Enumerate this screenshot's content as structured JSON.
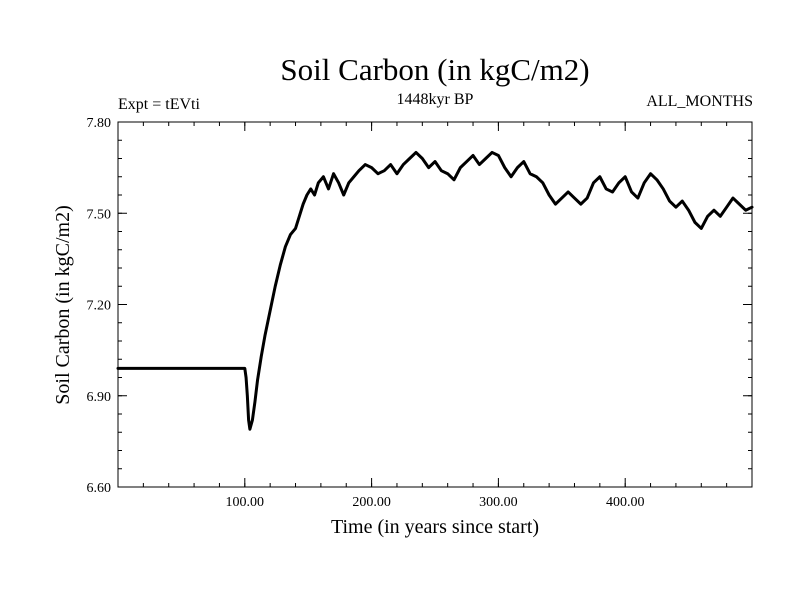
{
  "chart_data": {
    "type": "line",
    "title": "Soil Carbon (in kgC/m2)",
    "subtitle": "1448kyr BP",
    "left_label": "Expt = tEVti",
    "right_label": "ALL_MONTHS",
    "xlabel": "Time (in years since start)",
    "ylabel": "Soil Carbon (in kgC/m2)",
    "xlim": [
      0,
      500
    ],
    "ylim": [
      6.6,
      7.8
    ],
    "x_ticks": [
      {
        "value": 100,
        "label": "100.00"
      },
      {
        "value": 200,
        "label": "200.00"
      },
      {
        "value": 300,
        "label": "300.00"
      },
      {
        "value": 400,
        "label": "400.00"
      }
    ],
    "y_ticks": [
      {
        "value": 6.6,
        "label": "6.60"
      },
      {
        "value": 6.9,
        "label": "6.90"
      },
      {
        "value": 7.2,
        "label": "7.20"
      },
      {
        "value": 7.5,
        "label": "7.50"
      },
      {
        "value": 7.8,
        "label": "7.80"
      }
    ],
    "grid": false,
    "series": [
      {
        "name": "Soil Carbon",
        "x": [
          0,
          100,
          101,
          102,
          103,
          104,
          106,
          108,
          110,
          113,
          116,
          120,
          124,
          128,
          132,
          136,
          140,
          143,
          146,
          149,
          152,
          155,
          158,
          162,
          166,
          170,
          174,
          178,
          182,
          186,
          190,
          195,
          200,
          205,
          210,
          215,
          220,
          225,
          230,
          235,
          240,
          245,
          250,
          255,
          260,
          265,
          270,
          275,
          280,
          285,
          290,
          295,
          300,
          305,
          310,
          315,
          320,
          325,
          330,
          335,
          340,
          345,
          350,
          355,
          360,
          365,
          370,
          375,
          380,
          385,
          390,
          395,
          400,
          405,
          410,
          415,
          420,
          425,
          430,
          435,
          440,
          445,
          450,
          455,
          460,
          465,
          470,
          475,
          480,
          485,
          490,
          495,
          500
        ],
        "values": [
          6.99,
          6.99,
          6.96,
          6.9,
          6.82,
          6.79,
          6.82,
          6.88,
          6.95,
          7.03,
          7.1,
          7.18,
          7.26,
          7.33,
          7.39,
          7.43,
          7.45,
          7.49,
          7.53,
          7.56,
          7.58,
          7.56,
          7.6,
          7.62,
          7.58,
          7.63,
          7.6,
          7.56,
          7.6,
          7.62,
          7.64,
          7.66,
          7.65,
          7.63,
          7.64,
          7.66,
          7.63,
          7.66,
          7.68,
          7.7,
          7.68,
          7.65,
          7.67,
          7.64,
          7.63,
          7.61,
          7.65,
          7.67,
          7.69,
          7.66,
          7.68,
          7.7,
          7.69,
          7.65,
          7.62,
          7.65,
          7.67,
          7.63,
          7.62,
          7.6,
          7.56,
          7.53,
          7.55,
          7.57,
          7.55,
          7.53,
          7.55,
          7.6,
          7.62,
          7.58,
          7.57,
          7.6,
          7.62,
          7.57,
          7.55,
          7.6,
          7.63,
          7.61,
          7.58,
          7.54,
          7.52,
          7.54,
          7.51,
          7.47,
          7.45,
          7.49,
          7.51,
          7.49,
          7.52,
          7.55,
          7.53,
          7.51,
          7.52
        ]
      }
    ]
  }
}
